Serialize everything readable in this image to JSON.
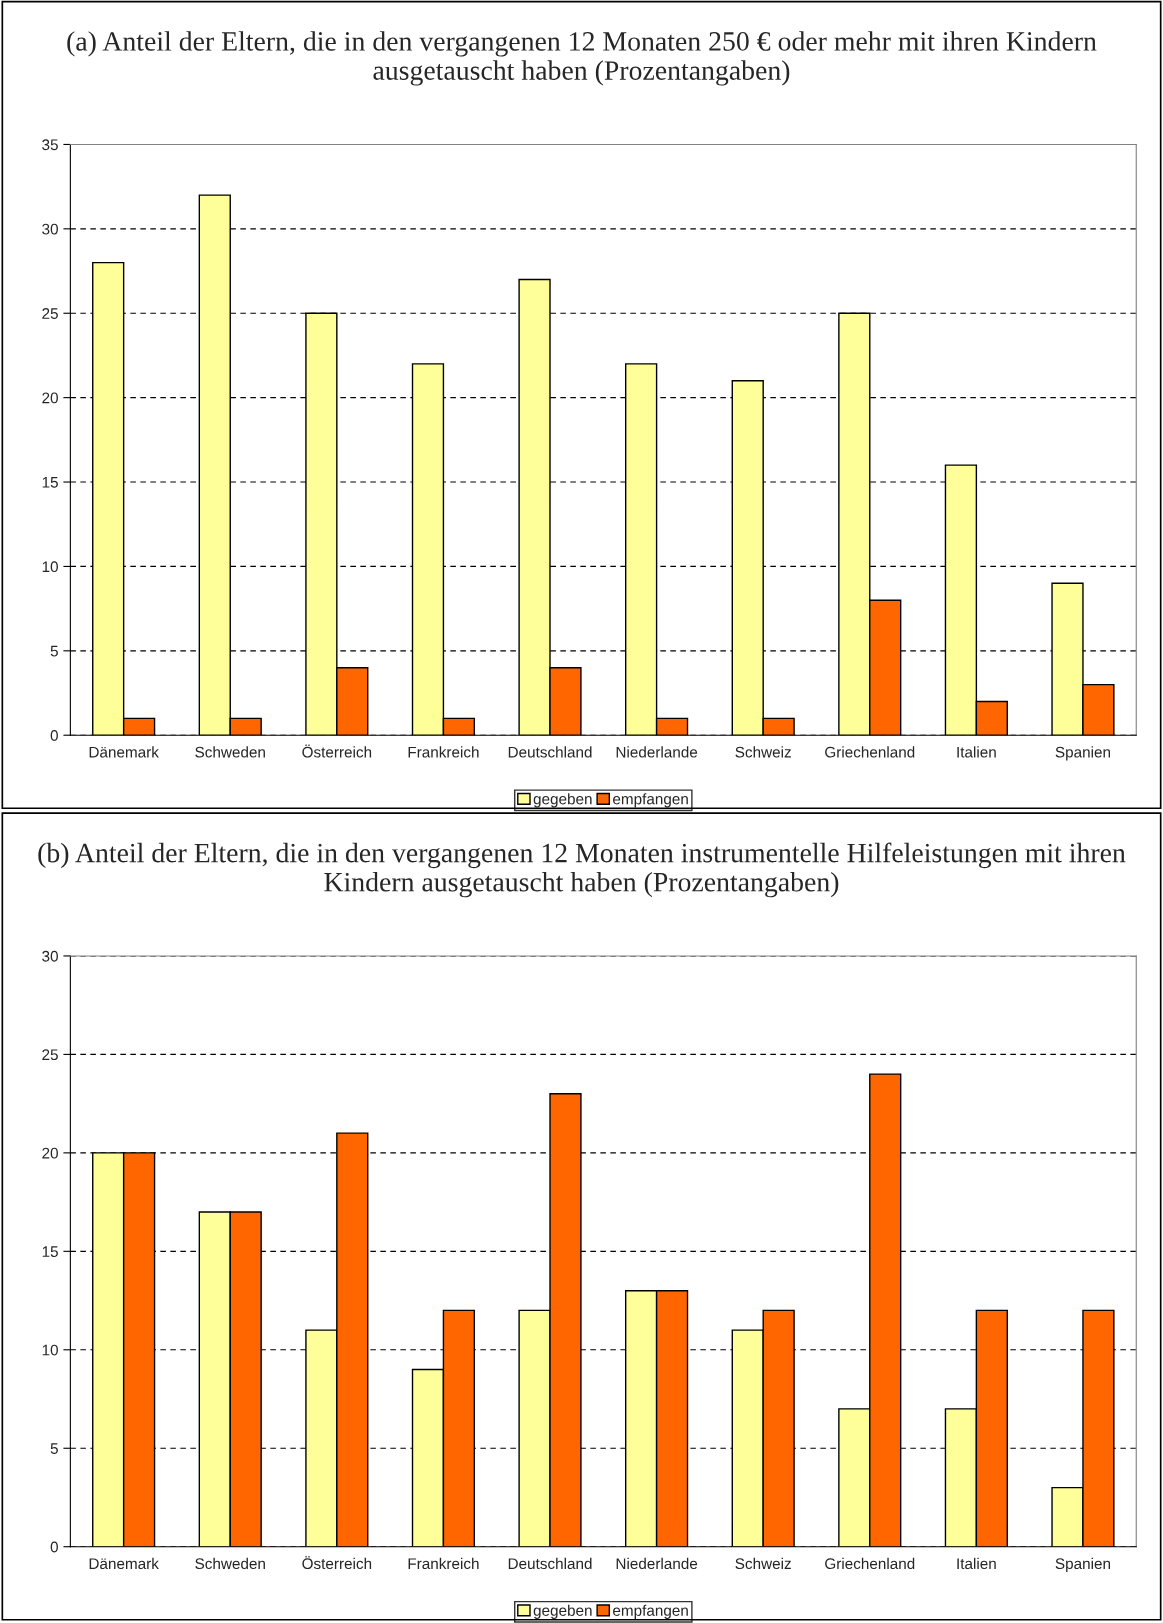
{
  "chart_data": [
    {
      "type": "bar",
      "title": "(a) Anteil der Eltern, die in den vergangenen 12 Monaten 250 € oder mehr mit ihren Kindern ausgetauscht haben (Prozentangaben)",
      "categories": [
        "Dänemark",
        "Schweden",
        "Österreich",
        "Frankreich",
        "Deutschland",
        "Niederlande",
        "Schweiz",
        "Griechenland",
        "Italien",
        "Spanien"
      ],
      "series": [
        {
          "name": "gegeben",
          "color": "#ffff99",
          "values": [
            28,
            32,
            25,
            22,
            27,
            22,
            21,
            25,
            16,
            9
          ]
        },
        {
          "name": "empfangen",
          "color": "#ff6600",
          "values": [
            1,
            1,
            4,
            1,
            4,
            1,
            1,
            8,
            2,
            3
          ]
        }
      ],
      "ylim": [
        0,
        35
      ],
      "yticks": [
        0,
        5,
        10,
        15,
        20,
        25,
        30,
        35
      ],
      "grid": "y",
      "legend": "bottom"
    },
    {
      "type": "bar",
      "title": "(b) Anteil der Eltern, die in den vergangenen 12 Monaten instrumentelle Hilfeleistungen mit ihren Kindern ausgetauscht haben (Prozentangaben)",
      "categories": [
        "Dänemark",
        "Schweden",
        "Österreich",
        "Frankreich",
        "Deutschland",
        "Niederlande",
        "Schweiz",
        "Griechenland",
        "Italien",
        "Spanien"
      ],
      "series": [
        {
          "name": "gegeben",
          "color": "#ffff99",
          "values": [
            20,
            17,
            11,
            9,
            12,
            13,
            11,
            7,
            7,
            3
          ]
        },
        {
          "name": "empfangen",
          "color": "#ff6600",
          "values": [
            20,
            17,
            21,
            12,
            23,
            13,
            12,
            24,
            12,
            12
          ]
        }
      ],
      "ylim": [
        0,
        30
      ],
      "yticks": [
        0,
        5,
        10,
        15,
        20,
        25,
        30
      ],
      "grid": "y",
      "legend": "bottom"
    }
  ]
}
